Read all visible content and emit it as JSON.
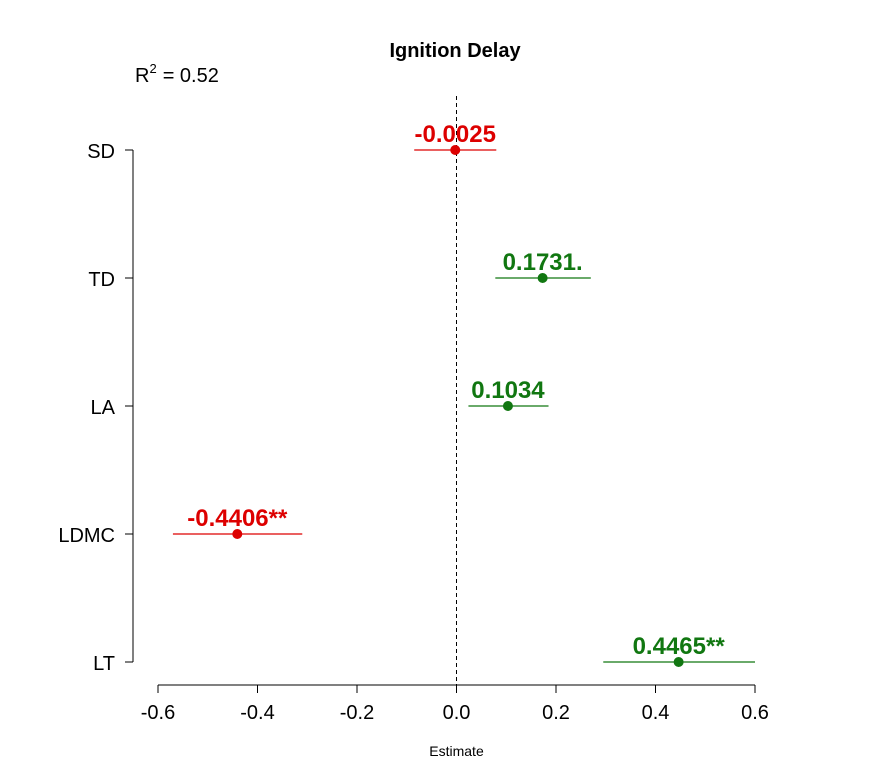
{
  "chart_data": {
    "type": "forest",
    "title": "Ignition Delay",
    "annotation": {
      "r2_label": "R",
      "r2_exp": "2",
      "r2_value": "= 0.52"
    },
    "xlabel": "Estimate",
    "xlim": [
      -0.6,
      0.6
    ],
    "x_ticks": [
      -0.6,
      -0.4,
      -0.2,
      0.0,
      0.2,
      0.4,
      0.6
    ],
    "x_tick_labels": [
      "-0.6",
      "-0.4",
      "-0.2",
      "0.0",
      "0.2",
      "0.4",
      "0.6"
    ],
    "reference_line": 0,
    "categories": [
      "SD",
      "TD",
      "LA",
      "LDMC",
      "LT"
    ],
    "estimates": [
      -0.0025,
      0.1731,
      0.1034,
      -0.4406,
      0.4465
    ],
    "ci_low": [
      -0.085,
      0.078,
      0.024,
      -0.57,
      0.295
    ],
    "ci_high": [
      0.08,
      0.27,
      0.185,
      -0.31,
      0.6
    ],
    "labels": [
      "-0.0025",
      "0.1731.",
      "0.1034",
      "-0.4406**",
      "0.4465**"
    ],
    "colors": [
      "#dd0000",
      "#117711",
      "#117711",
      "#dd0000",
      "#117711"
    ]
  }
}
